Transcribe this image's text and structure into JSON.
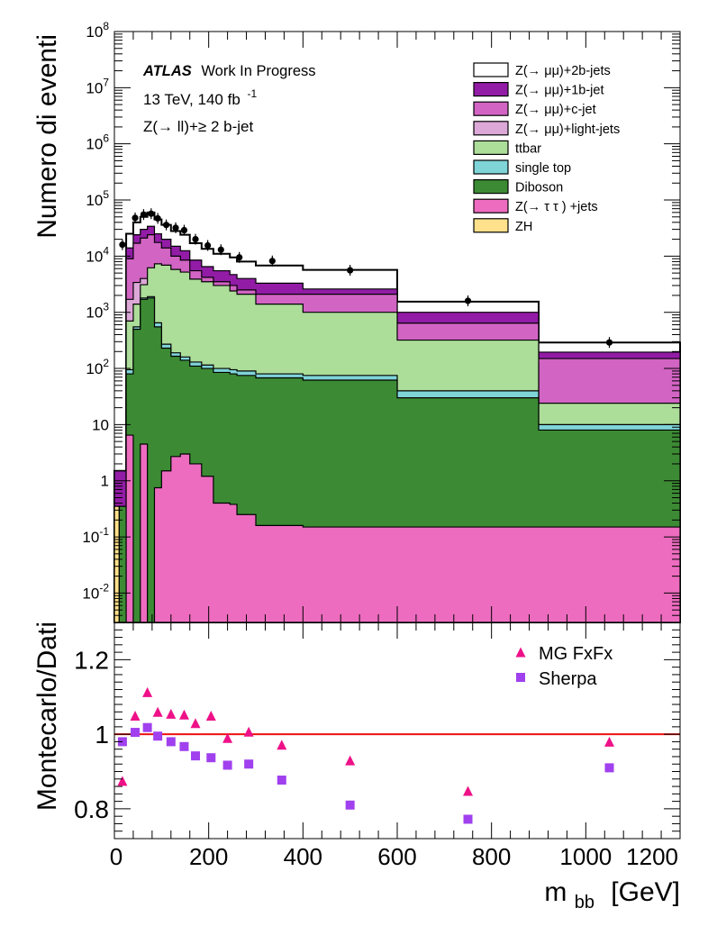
{
  "chart_data": [
    {
      "type": "area",
      "subtype": "stacked-step-histogram",
      "ylabel": "Numero di eventi",
      "yscale": "log",
      "xlim": [
        0,
        1200
      ],
      "ylim": [
        0.003,
        100000000
      ],
      "y_tick_labels": [
        {
          "value": 100000000,
          "base": "10",
          "exp": "8"
        },
        {
          "value": 10000000,
          "base": "10",
          "exp": "7"
        },
        {
          "value": 1000000,
          "base": "10",
          "exp": "6"
        },
        {
          "value": 100000,
          "base": "10",
          "exp": "5"
        },
        {
          "value": 10000,
          "base": "10",
          "exp": "4"
        },
        {
          "value": 1000,
          "base": "10",
          "exp": "3"
        },
        {
          "value": 100,
          "base": "10",
          "exp": "2"
        },
        {
          "value": 10,
          "base": "10",
          "exp": ""
        },
        {
          "value": 1,
          "base": "1",
          "exp": ""
        },
        {
          "value": 0.1,
          "base": "10",
          "exp": "-1"
        },
        {
          "value": 0.01,
          "base": "10",
          "exp": "-2"
        }
      ],
      "annotations": {
        "experiment": "ATLAS",
        "status": "Work In Progress",
        "energy_lumi": "13 TeV, 140 fb",
        "lumi_exp": "-1",
        "region": "Z(→ ll)+≥ 2 b-jet"
      },
      "legend": {
        "placement": "top-right"
      },
      "bin_edges": [
        0,
        10,
        25,
        40,
        55,
        70,
        85,
        100,
        120,
        140,
        160,
        185,
        210,
        245,
        260,
        300,
        400,
        600,
        900,
        1200
      ],
      "series_stack_order_bottom_to_top": [
        "ZH",
        "Z(→ τ τ ) +jets",
        "Diboson",
        "single top",
        "ttbar",
        "Z(→ μμ)+light-jets",
        "Z(→ μμ)+c-jet",
        "Z(→ μμ)+1b-jet",
        "Z(→ μμ)+2b-jets"
      ],
      "series": [
        {
          "name": "Z(→ μμ)+2b-jets",
          "color": "#ffffff",
          "cumulative_top": [
            1.5,
            1.5,
            25000,
            40000,
            50000,
            60000,
            45000,
            36000,
            28000,
            24000,
            17000,
            13500,
            11000,
            9500,
            8000,
            6800,
            5700,
            1550,
            290
          ]
        },
        {
          "name": "Z(→ μμ)+1b-jet",
          "color": "#921ca6",
          "cumulative_top": [
            1.5,
            1.5,
            14000,
            24000,
            30000,
            34000,
            25000,
            20000,
            15000,
            12500,
            8500,
            6500,
            5500,
            4700,
            4000,
            3300,
            2600,
            1000,
            195
          ]
        },
        {
          "name": "Z(→ μμ)+c-jet",
          "color": "#d264c4",
          "cumulative_top": [
            0.35,
            0.35,
            9000,
            17000,
            21000,
            24000,
            17500,
            14000,
            10000,
            8500,
            5500,
            4200,
            3500,
            3000,
            2500,
            2100,
            2100,
            640,
            150
          ]
        },
        {
          "name": "Z(→ μμ)+light-jets",
          "color": "#dca8d8",
          "cumulative_top": [
            0.35,
            0.35,
            1700,
            3400,
            4000,
            4400,
            3500,
            3000,
            2100,
            1700,
            1200,
            900,
            700,
            600,
            500,
            420,
            240,
            125,
            24
          ]
        },
        {
          "name": "ttbar",
          "color": "#acdd99",
          "cumulative_top": [
            0.35,
            0.35,
            700,
            1400,
            3100,
            6200,
            7300,
            6900,
            5800,
            5200,
            3900,
            3500,
            3000,
            2400,
            2100,
            1400,
            1000,
            320,
            24
          ]
        },
        {
          "name": "single top",
          "color": "#7fd4d8",
          "cumulative_top": [
            0.35,
            0.35,
            95,
            550,
            1800,
            1900,
            650,
            270,
            190,
            160,
            130,
            115,
            100,
            95,
            90,
            80,
            75,
            40,
            10
          ]
        },
        {
          "name": "Diboson",
          "color": "#3c8b34",
          "cumulative_top": [
            0.35,
            0.35,
            80,
            500,
            1700,
            1800,
            550,
            230,
            165,
            140,
            110,
            100,
            85,
            80,
            75,
            68,
            62,
            30,
            8
          ]
        },
        {
          "name": "Z(→ τ τ ) +jets",
          "color": "#ed6cc0",
          "cumulative_top": [
            0.35,
            0.003,
            6.5,
            0.003,
            4.5,
            0.003,
            0.75,
            1.5,
            2.7,
            3.0,
            2.0,
            1.2,
            0.4,
            0.38,
            0.25,
            0.16,
            0.15,
            0.15,
            0.15
          ]
        },
        {
          "name": "ZH",
          "color": "#ffe18b",
          "cumulative_top": [
            0.35,
            0.003,
            0.003,
            0.003,
            0.003,
            0.003,
            0.003,
            0.003,
            0.003,
            0.003,
            0.003,
            0.003,
            0.003,
            0.003,
            0.003,
            0.003,
            0.003,
            0.003,
            0.003
          ]
        }
      ],
      "data_points": {
        "x": [
          17,
          44,
          62,
          78,
          92,
          110,
          130,
          148,
          172,
          198,
          226,
          265,
          335,
          500,
          750,
          1050
        ],
        "y": [
          16000,
          48000,
          55000,
          57000,
          47000,
          36000,
          32000,
          29000,
          20000,
          15500,
          13000,
          9500,
          8200,
          5600,
          1600,
          290
        ]
      }
    },
    {
      "type": "scatter",
      "ylabel": "Montecarlo/Dati",
      "xlabel": "m",
      "xlabel_sub": "bb",
      "xlabel_unit": "[GeV]",
      "xlim": [
        0,
        1200
      ],
      "ylim": [
        0.72,
        1.3
      ],
      "x_ticks": [
        0,
        200,
        400,
        600,
        800,
        1000,
        1200
      ],
      "x_tick_labels": [
        "0",
        "200",
        "400",
        "600",
        "800",
        "1000",
        "1200"
      ],
      "y_ticks": [
        0.8,
        1,
        1.2
      ],
      "y_tick_labels": [
        "0.8",
        "1",
        "1.2"
      ],
      "reference_line": {
        "y": 1,
        "color": "#ee1111"
      },
      "legend": {
        "placement": "top-right"
      },
      "series": [
        {
          "name": "MG FxFx",
          "marker": "triangle",
          "color": "#ee1188",
          "x": [
            17,
            44,
            70,
            92,
            120,
            148,
            172,
            205,
            240,
            285,
            355,
            500,
            750,
            1050
          ],
          "y": [
            0.875,
            1.05,
            1.113,
            1.06,
            1.055,
            1.053,
            1.03,
            1.05,
            0.99,
            1.007,
            0.972,
            0.93,
            0.848,
            0.98
          ]
        },
        {
          "name": "Sherpa",
          "marker": "square",
          "color": "#a040ee",
          "x": [
            17,
            44,
            70,
            92,
            120,
            148,
            172,
            205,
            240,
            285,
            355,
            500,
            750,
            1050
          ],
          "y": [
            0.98,
            1.005,
            1.018,
            0.995,
            0.98,
            0.967,
            0.942,
            0.937,
            0.917,
            0.92,
            0.877,
            0.81,
            0.772,
            0.91
          ]
        }
      ]
    }
  ]
}
